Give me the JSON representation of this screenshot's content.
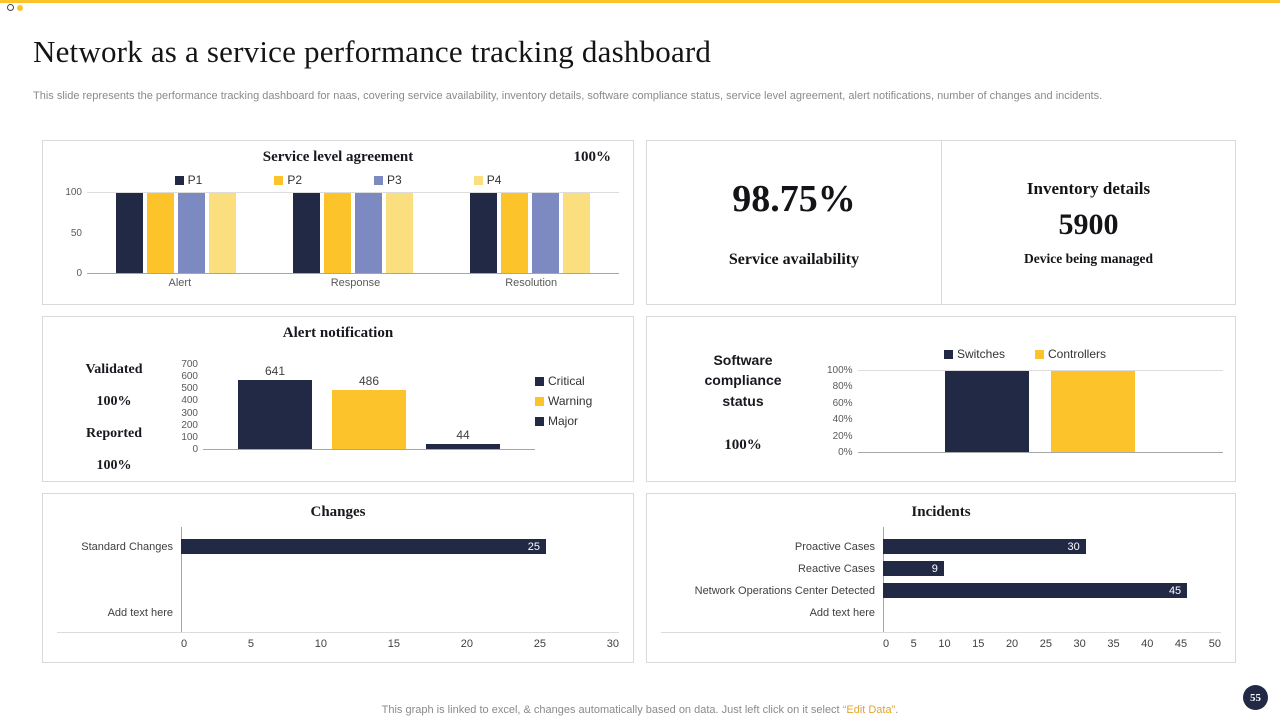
{
  "page": {
    "title": "Network as a service performance tracking dashboard",
    "subtitle": "This slide represents the performance tracking dashboard for naas, covering service availability, inventory details, software compliance status, service level agreement, alert notifications, number of changes and incidents.",
    "page_number": "55",
    "footer": {
      "prefix": "This graph is linked to excel, & changes automatically based on data. Just left click on it select ",
      "highlight": "“Edit Data”",
      "suffix": "."
    }
  },
  "colors": {
    "accent": "#FDC32B",
    "navy": "#212945",
    "slate": "#7C8AC1",
    "light_yellow": "#FBDE7E",
    "panel_border": "#D9D9D9"
  },
  "panels": {
    "availability": {
      "value": "98.75%",
      "label": "Service availability"
    },
    "inventory": {
      "title": "Inventory details",
      "value": "5900",
      "label": "Device being managed"
    },
    "alert_stats": [
      {
        "label": "Validated",
        "value": "100%"
      },
      {
        "label": "Reported",
        "value": "100%"
      }
    ],
    "compliance": {
      "value": "100%"
    }
  },
  "chart_data": [
    {
      "id": "sla",
      "type": "bar",
      "title": "Service level agreement",
      "annotation": "100%",
      "categories": [
        "Alert",
        "Response",
        "Resolution"
      ],
      "series": [
        {
          "name": "P1",
          "color": "#212945",
          "values": [
            100,
            100,
            100
          ]
        },
        {
          "name": "P2",
          "color": "#FDC32B",
          "values": [
            100,
            100,
            100
          ]
        },
        {
          "name": "P3",
          "color": "#7C8AC1",
          "values": [
            100,
            100,
            100
          ]
        },
        {
          "name": "P4",
          "color": "#FBDE7E",
          "values": [
            100,
            100,
            100
          ]
        }
      ],
      "ylim": [
        0,
        100
      ],
      "yticks": [
        100,
        50,
        0
      ],
      "legend_position": "top",
      "grid": false
    },
    {
      "id": "alert-notification",
      "type": "bar",
      "title": "Alert notification",
      "categories": [
        "Critical",
        "Warning",
        "Major"
      ],
      "values": [
        641,
        486,
        44
      ],
      "colors": [
        "#212945",
        "#FDC32B",
        "#212945"
      ],
      "ylim": [
        0,
        700
      ],
      "yticks": [
        700,
        600,
        500,
        400,
        300,
        200,
        100,
        0
      ],
      "legend_position": "right",
      "data_labels": true,
      "grid": false
    },
    {
      "id": "software-compliance",
      "type": "bar",
      "title": "Software compliance status",
      "categories": [
        "Switches",
        "Controllers"
      ],
      "values": [
        100,
        100
      ],
      "colors": [
        "#212945",
        "#FDC32B"
      ],
      "ylim": [
        0,
        100
      ],
      "yticks": [
        "100%",
        "80%",
        "60%",
        "40%",
        "20%",
        "0%"
      ],
      "legend_position": "top",
      "grid": false
    },
    {
      "id": "changes",
      "type": "bar",
      "orientation": "horizontal",
      "title": "Changes",
      "categories": [
        "Standard Changes",
        "Add text here"
      ],
      "values": [
        25,
        null
      ],
      "bar_color": "#212945",
      "xlim": [
        0,
        30
      ],
      "xticks": [
        0,
        5,
        10,
        15,
        20,
        25,
        30
      ],
      "data_labels": true,
      "grid": false
    },
    {
      "id": "incidents",
      "type": "bar",
      "orientation": "horizontal",
      "title": "Incidents",
      "categories": [
        "Proactive Cases",
        "Reactive Cases",
        "Network Operations Center Detected",
        "Add text here"
      ],
      "values": [
        30,
        9,
        45,
        null
      ],
      "bar_color": "#212945",
      "xlim": [
        0,
        50
      ],
      "xticks": [
        0,
        5,
        10,
        15,
        20,
        25,
        30,
        35,
        40,
        45,
        50
      ],
      "data_labels": true,
      "grid": false
    }
  ]
}
